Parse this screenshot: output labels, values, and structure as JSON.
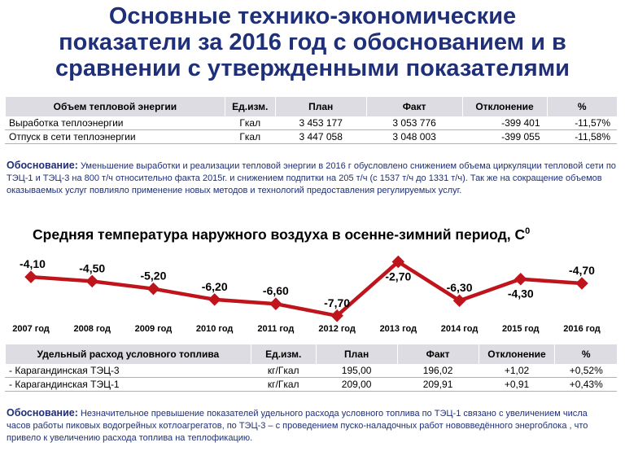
{
  "title": {
    "line1": "Основные технико-экономические",
    "line2": "показатели за 2016 год с обоснованием и в",
    "line3": "сравнении с утвержденными показателями"
  },
  "table1": {
    "headers": [
      "Объем тепловой энергии",
      "Ед.изм.",
      "План",
      "Факт",
      "Отклонение",
      "%"
    ],
    "rows": [
      [
        "Выработка теплоэнергии",
        "Гкал",
        "3 453 177",
        "3 053 776",
        "-399 401",
        "-11,57%"
      ],
      [
        "Отпуск в сети теплоэнергии",
        "Гкал",
        "3 447 058",
        "3 048 003",
        "-399 055",
        "-11,58%"
      ]
    ]
  },
  "justification1": {
    "label": "Обоснование:",
    "text": "Уменьшение выработки и реализации тепловой энергии в 2016 г обусловлено снижением объема циркуляции тепловой сети по ТЭЦ-1 и ТЭЦ-3 на 800 т/ч относительно факта 2015г. и снижением подпитки на 205 т/ч (с 1537 т/ч до 1331 т/ч). Так же на сокращение объемов оказываемых услуг повлияло применение новых методов и технологий предоставления регулируемых услуг."
  },
  "chart_title": "Средняя температура наружного воздуха в осенне-зимний период, С",
  "chart_title_sup": "0",
  "chart_data": {
    "type": "line",
    "title": "Средняя температура наружного воздуха в осенне-зимний период, С0",
    "categories": [
      "2007 год",
      "2008 год",
      "2009 год",
      "2010 год",
      "2011 год",
      "2012 год",
      "2013 год",
      "2014 год",
      "2015 год",
      "2016 год"
    ],
    "values": [
      -4.1,
      -4.5,
      -5.2,
      -6.2,
      -6.6,
      -7.7,
      -2.7,
      -6.3,
      -4.3,
      -4.7
    ],
    "data_labels": [
      "-4,10",
      "-4,50",
      "-5,20",
      "-6,20",
      "-6,60",
      "-7,70",
      "-2,70",
      "-6,30",
      "-4,30",
      "-4,70"
    ],
    "label_position": [
      "above",
      "above",
      "above",
      "above",
      "above",
      "above",
      "below",
      "above",
      "below",
      "above"
    ],
    "ylim": [
      -9,
      -1
    ],
    "grid": false,
    "series_color": "#c0141c"
  },
  "table2": {
    "headers": [
      "Удельный расход условного топлива",
      "Ед.изм.",
      "План",
      "Факт",
      "Отклонение",
      "%"
    ],
    "rows": [
      [
        "- Карагандинская ТЭЦ-3",
        "кг/Гкал",
        "195,00",
        "196,02",
        "+1,02",
        "+0,52%"
      ],
      [
        "- Карагандинская ТЭЦ-1",
        "кг/Гкал",
        "209,00",
        "209,91",
        "+0,91",
        "+0,43%"
      ]
    ]
  },
  "justification2": {
    "label": "Обоснование:",
    "text": "Незначительное превышение  показателей удельного расхода условного топлива по ТЭЦ-1 связано с увеличением числа часов работы пиковых водогрейных котлоагрегатов, по ТЭЦ-3 – с проведением пуско-наладочных работ нововведённого энергоблока , что привело к увеличению расхода топлива на теплофикацию."
  }
}
